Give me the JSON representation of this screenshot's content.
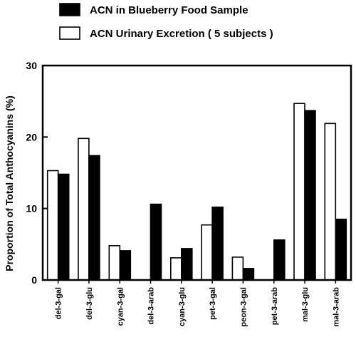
{
  "chart_data": {
    "type": "bar",
    "title": "",
    "xlabel": "",
    "ylabel": "Proportion of  Total Anthocyanins (%)",
    "ylim": [
      0,
      30
    ],
    "yticks": [
      0,
      10,
      20,
      30
    ],
    "grid": false,
    "legend_position": "top",
    "categories": [
      "del-3-gal",
      "del-3-glu",
      "cyan-3-gal",
      "del-3-arab",
      "cyan-3-glu",
      "pet-3-gal",
      "peon-3-gal",
      "pet-3-arab",
      "mal-3-glu",
      "mal-3-arab"
    ],
    "series": [
      {
        "name": "ACN Urinary Excretion ( 5 subjects )",
        "color": "#ffffff",
        "values": [
          15.3,
          19.8,
          4.8,
          null,
          3.1,
          7.7,
          3.2,
          null,
          24.7,
          21.9
        ]
      },
      {
        "name": "ACN in Blueberry Food Sample",
        "color": "#000000",
        "values": [
          14.8,
          17.4,
          4.1,
          10.6,
          4.4,
          10.2,
          1.6,
          5.6,
          23.7,
          8.5
        ]
      }
    ],
    "legend_order": [
      1,
      0
    ]
  }
}
